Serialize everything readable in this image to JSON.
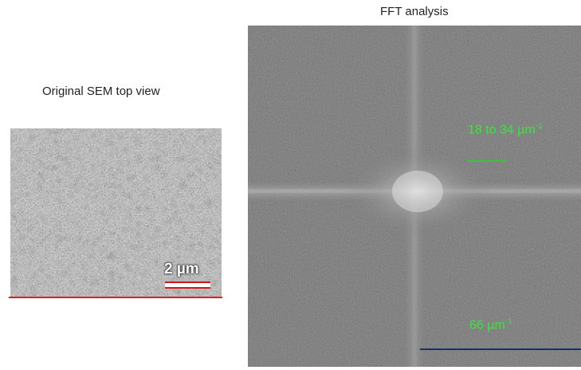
{
  "sem": {
    "caption": "Original SEM top view",
    "scalebar_label": "2 µm"
  },
  "fft": {
    "caption": "FFT analysis",
    "range_text": "18 to 34 µm",
    "range_exponent": "-1",
    "inner_text": "66 µm",
    "inner_exponent": "-1"
  },
  "colors": {
    "annotation_green": "#39e639",
    "sem_underline_red": "#e01f1f",
    "fft_marker_blue": "#12306e"
  }
}
